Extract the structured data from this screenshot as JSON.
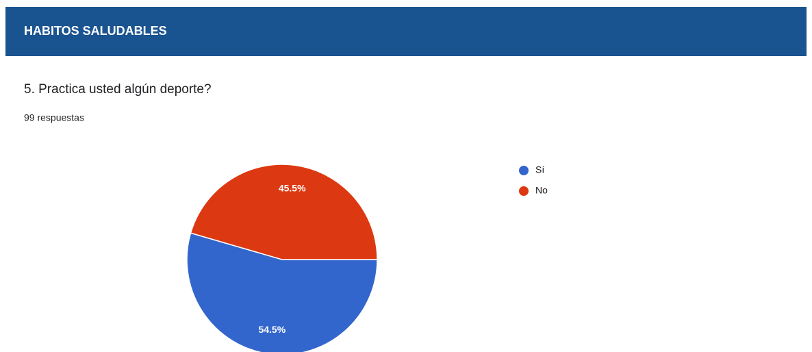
{
  "header": {
    "title": "HABITOS SALUDABLES"
  },
  "question": {
    "title": "5. Practica usted algún deporte?",
    "responses": "99 respuestas"
  },
  "chart_data": {
    "type": "pie",
    "categories": [
      "Sí",
      "No"
    ],
    "values": [
      54.5,
      45.5
    ],
    "value_labels": [
      "54.5%",
      "45.5%"
    ],
    "colors": [
      "#3366cc",
      "#dc3912"
    ],
    "legend": "right"
  }
}
